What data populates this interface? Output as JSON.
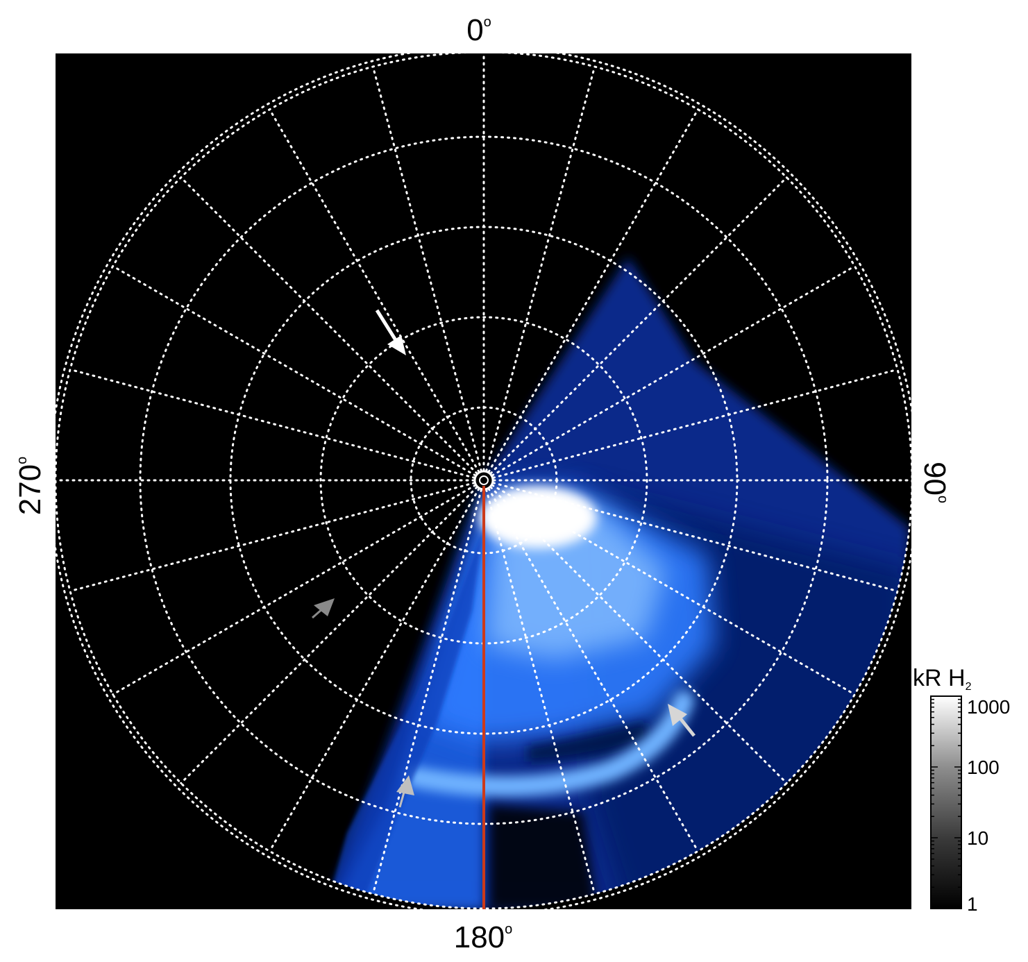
{
  "polar_plot": {
    "angle_labels": {
      "top": "0",
      "right": "90",
      "bottom": "180",
      "left": "270",
      "degree_symbol": "o"
    },
    "rings": 5,
    "spokes_deg_step": 15,
    "grid_color": "#ffffff",
    "background_color": "#000000",
    "emission_colors": [
      "#00104a",
      "#0a3fc0",
      "#2f80ff",
      "#8ec4ff",
      "#ffffff"
    ],
    "meridian_line_color": "#cc3a1a",
    "arrow_colors": {
      "white": "#ffffff",
      "dark_gray": "#8a8a8a",
      "light_gray": "#bfbfbf",
      "pale_gray": "#d6d6d6"
    }
  },
  "colorbar": {
    "title_main": "kR H",
    "title_sub": "2",
    "ticks": [
      "1000",
      "100",
      "10",
      "1"
    ],
    "scale": "log",
    "range": [
      1,
      1000
    ]
  }
}
